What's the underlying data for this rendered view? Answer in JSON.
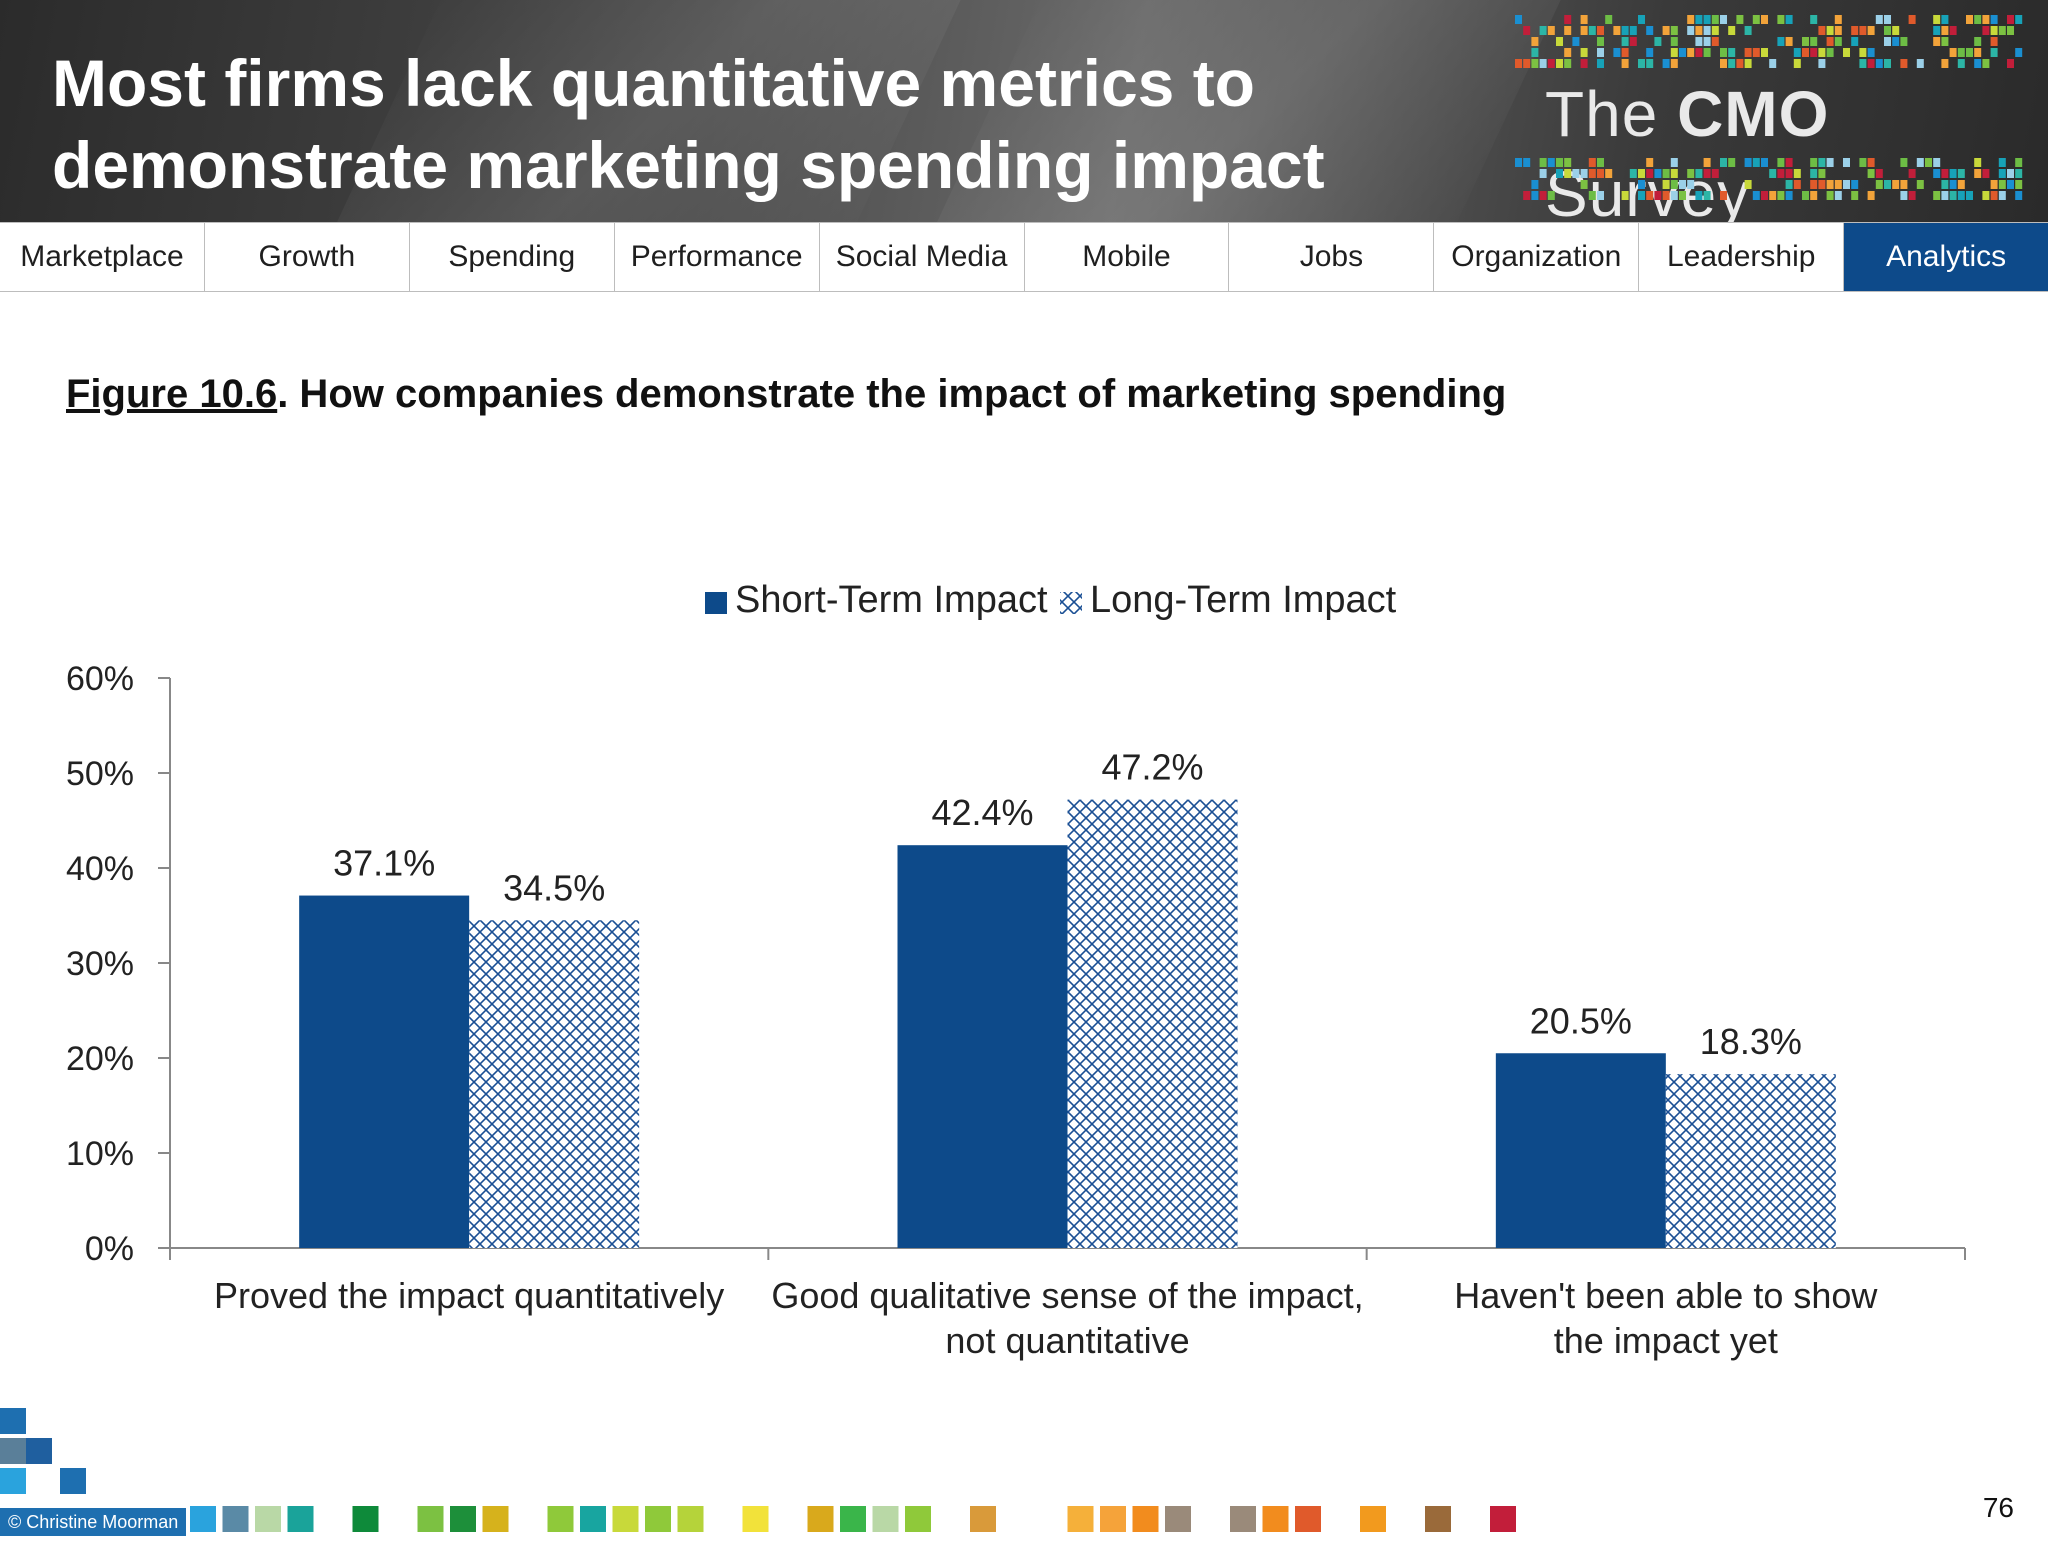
{
  "header": {
    "title": "Most firms lack quantitative metrics to demonstrate marketing spending impact",
    "brand_pre": "The ",
    "brand_bold": "CMO",
    "brand_post": " Survey"
  },
  "nav": {
    "tabs": [
      {
        "label": "Marketplace",
        "active": false
      },
      {
        "label": "Growth",
        "active": false
      },
      {
        "label": "Spending",
        "active": false
      },
      {
        "label": "Performance",
        "active": false
      },
      {
        "label": "Social Media",
        "active": false
      },
      {
        "label": "Mobile",
        "active": false
      },
      {
        "label": "Jobs",
        "active": false
      },
      {
        "label": "Organization",
        "active": false
      },
      {
        "label": "Leadership",
        "active": false
      },
      {
        "label": "Analytics",
        "active": true
      }
    ]
  },
  "figure": {
    "number": "Figure 10.6",
    "caption": ". How companies demonstrate the impact of marketing spending"
  },
  "colors": {
    "short_term": "#0d4a8a",
    "long_term_pattern": "#1a4f94",
    "nav_active": "#0d4a8a"
  },
  "chart_data": {
    "type": "bar",
    "categories": [
      [
        "Proved the impact quantitatively"
      ],
      [
        "Good qualitative sense of the impact,",
        "not quantitative"
      ],
      [
        "Haven't been able to show",
        "the impact yet"
      ]
    ],
    "series": [
      {
        "name": "Short-Term Impact",
        "values": [
          37.1,
          42.4,
          20.5
        ],
        "labels": [
          "37.1%",
          "42.4%",
          "20.5%"
        ],
        "fill": "solid"
      },
      {
        "name": "Long-Term Impact",
        "values": [
          34.5,
          47.2,
          18.3
        ],
        "labels": [
          "34.5%",
          "47.2%",
          "18.3%"
        ],
        "fill": "crosshatch"
      }
    ],
    "ylim": [
      0,
      60
    ],
    "yticks": [
      "0%",
      "10%",
      "20%",
      "30%",
      "40%",
      "50%",
      "60%"
    ],
    "legend_position": "top-center",
    "grid": false
  },
  "footer": {
    "copyright": "© Christine Moorman",
    "page_number": "76"
  }
}
